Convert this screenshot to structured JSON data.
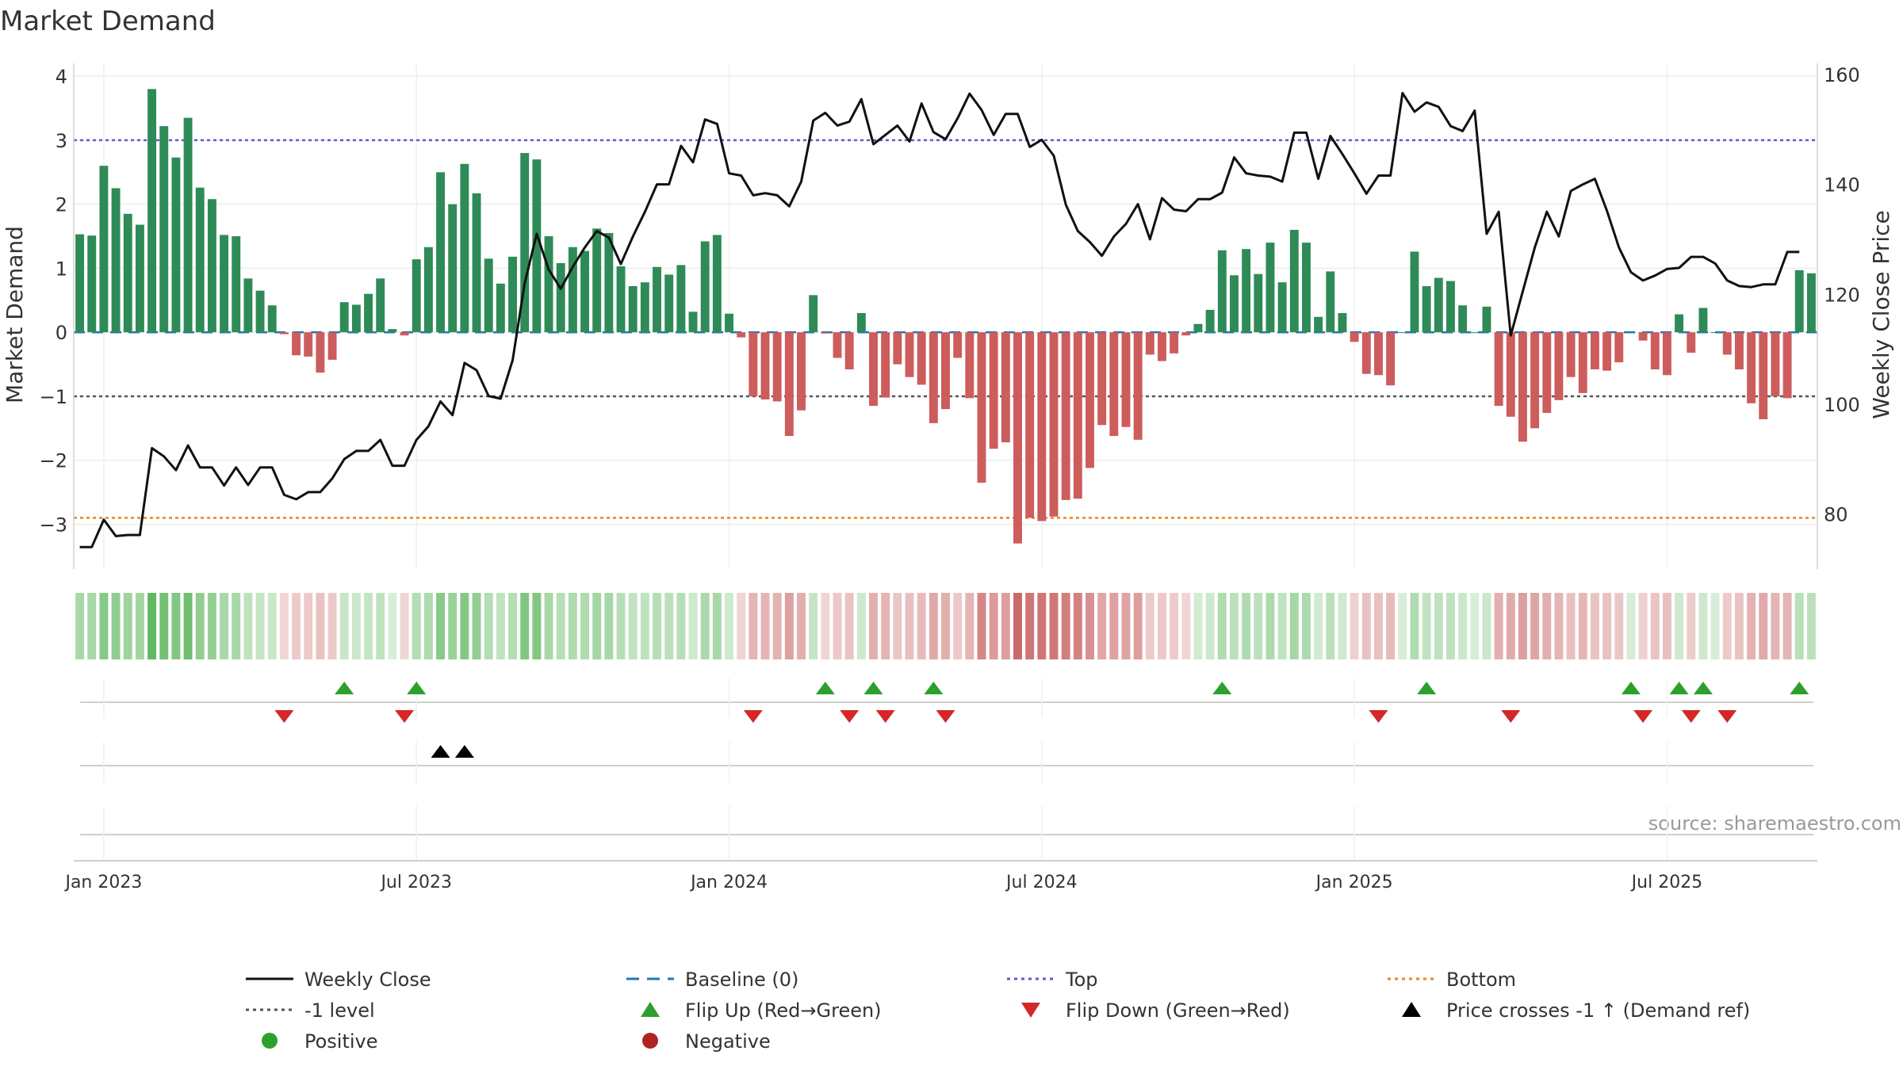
{
  "chart_data": {
    "type": "bar+line",
    "title": "Market Demand",
    "ylabel": "Market Demand",
    "y2label": "Weekly Close Price",
    "ylim": [
      -3.7,
      4.2
    ],
    "y2lim": [
      70,
      162
    ],
    "yticks": [
      "−3",
      "−2",
      "−1",
      "0",
      "1",
      "2",
      "3",
      "4"
    ],
    "ytick_values": [
      -3,
      -2,
      -1,
      0,
      1,
      2,
      3,
      4
    ],
    "y2ticks": [
      "80",
      "100",
      "120",
      "140",
      "160"
    ],
    "y2tick_values": [
      80,
      100,
      120,
      140,
      160
    ],
    "xticks": [
      "Jan 2023",
      "Jul 2023",
      "Jan 2024",
      "Jul 2024",
      "Jan 2025",
      "Jul 2025"
    ],
    "xtick_weeks": [
      0,
      26,
      52,
      78,
      104,
      130
    ],
    "first_week_offset": -2,
    "top_level": 3.0,
    "minus1_level": -1.0,
    "bottom_level": -2.9,
    "colors": {
      "positive": "#2e8b57",
      "negative": "#cd5c5c",
      "close": "#111111",
      "baseline": "#1f77b4",
      "top": "#5b5bd6",
      "minus1": "#555555",
      "bottom": "#e08a1e",
      "flip_up": "#2ca02c",
      "flip_down": "#d62728",
      "cross": "#000000",
      "positive_dot": "#2ca02c",
      "negative_dot": "#b22222"
    },
    "demand": [
      1.53,
      1.51,
      2.6,
      2.25,
      1.85,
      1.68,
      3.8,
      3.22,
      2.73,
      3.35,
      2.26,
      2.08,
      1.52,
      1.5,
      0.84,
      0.65,
      0.42,
      -0.03,
      -0.36,
      -0.38,
      -0.63,
      -0.43,
      0.47,
      0.43,
      0.6,
      0.84,
      0.05,
      -0.05,
      1.14,
      1.33,
      2.5,
      2.0,
      2.63,
      2.17,
      1.15,
      0.76,
      1.18,
      2.8,
      2.7,
      1.5,
      1.08,
      1.33,
      1.27,
      1.62,
      1.55,
      1.03,
      0.72,
      0.78,
      1.02,
      0.9,
      1.05,
      0.32,
      1.42,
      1.52,
      0.29,
      -0.08,
      -1.0,
      -1.05,
      -1.08,
      -1.62,
      -1.22,
      0.58,
      -0.02,
      -0.4,
      -0.58,
      0.3,
      -1.15,
      -1.02,
      -0.5,
      -0.7,
      -0.82,
      -1.42,
      -1.2,
      -0.4,
      -1.03,
      -2.35,
      -1.82,
      -1.72,
      -3.3,
      -2.9,
      -2.95,
      -2.88,
      -2.62,
      -2.6,
      -2.12,
      -1.45,
      -1.62,
      -1.48,
      -1.68,
      -0.35,
      -0.45,
      -0.33,
      -0.05,
      0.13,
      0.35,
      1.28,
      0.89,
      1.3,
      0.91,
      1.4,
      0.78,
      1.6,
      1.4,
      0.24,
      0.95,
      0.3,
      -0.15,
      -0.65,
      -0.67,
      -0.83,
      0.0,
      1.26,
      0.72,
      0.85,
      0.8,
      0.42,
      0.0,
      0.4,
      -1.15,
      -1.32,
      -1.71,
      -1.5,
      -1.26,
      -1.06,
      -0.7,
      -0.95,
      -0.58,
      -0.6,
      -0.47,
      0.0,
      -0.13,
      -0.58,
      -0.67,
      0.28,
      -0.32,
      0.38,
      0.0,
      -0.35,
      -0.58,
      -1.11,
      -1.36,
      -1.0,
      -1.03,
      0.97,
      0.92
    ],
    "close": [
      74,
      74,
      79,
      76,
      76.2,
      76.2,
      92,
      90.5,
      88,
      92.5,
      88.5,
      88.5,
      85.2,
      88.5,
      85.3,
      88.5,
      88.5,
      83.5,
      82.7,
      84,
      84,
      86.5,
      90,
      91.5,
      91.5,
      93.5,
      88.8,
      88.8,
      93.5,
      96,
      100.5,
      98,
      107.5,
      106.2,
      101.5,
      101,
      108,
      122,
      131,
      124.5,
      121,
      125,
      128.5,
      131.5,
      130.3,
      125.5,
      130.5,
      135,
      140,
      140,
      147,
      144,
      151.8,
      151,
      142,
      141.6,
      138,
      138.4,
      138,
      136,
      140.5,
      151.6,
      153,
      150.7,
      151.4,
      155.5,
      147.3,
      149,
      150.7,
      147.8,
      154.7,
      149.5,
      148.2,
      152,
      156.5,
      153.5,
      149,
      152.8,
      152.8,
      146.8,
      148.1,
      145.2,
      136.3,
      131.5,
      129.5,
      127,
      130.5,
      132.8,
      136.4,
      130,
      137.5,
      135.4,
      135.1,
      137.3,
      137.3,
      138.5,
      144.9,
      142,
      141.6,
      141.4,
      140.5,
      149.4,
      149.4,
      141,
      148.8,
      145.5,
      142,
      138.3,
      141.6,
      141.6,
      156.6,
      153.2,
      154.9,
      154.1,
      150.6,
      149.7,
      153.4,
      131,
      135,
      112.5,
      120.5,
      128.5,
      135,
      130.5,
      138.8,
      140,
      141,
      135.2,
      128.5,
      124,
      122.5,
      123.4,
      124.6,
      124.8,
      126.8,
      126.8,
      125.6,
      122.5,
      121.5,
      121.3,
      121.8,
      121.8,
      127.7,
      127.7
    ],
    "flip_up_weeks": [
      20,
      26,
      60,
      64,
      69,
      93,
      110,
      127,
      131,
      133,
      141
    ],
    "flip_down_weeks": [
      15,
      25,
      54,
      62,
      65,
      70,
      106,
      117,
      128,
      132,
      135
    ],
    "cross_weeks": [
      28,
      30
    ],
    "source": "source: sharemaestro.com",
    "legend": [
      {
        "label": "Weekly Close",
        "symbol": "line-solid",
        "color": "#111111"
      },
      {
        "label": "Baseline (0)",
        "symbol": "line-dash",
        "color": "#1f77b4"
      },
      {
        "label": "Top",
        "symbol": "line-dot",
        "color": "#5b5bd6"
      },
      {
        "label": "Bottom",
        "symbol": "line-dot",
        "color": "#e08a1e"
      },
      {
        "label": "-1 level",
        "symbol": "line-dot",
        "color": "#555555"
      },
      {
        "label": "Flip Up (Red→Green)",
        "symbol": "tri-up",
        "color": "#2ca02c"
      },
      {
        "label": "Flip Down (Green→Red)",
        "symbol": "tri-down",
        "color": "#d62728"
      },
      {
        "label": "Price crosses -1 ↑ (Demand ref)",
        "symbol": "tri-up",
        "color": "#000000"
      },
      {
        "label": "Positive",
        "symbol": "dot",
        "color": "#2ca02c"
      },
      {
        "label": "Negative",
        "symbol": "dot",
        "color": "#b22222"
      }
    ]
  }
}
